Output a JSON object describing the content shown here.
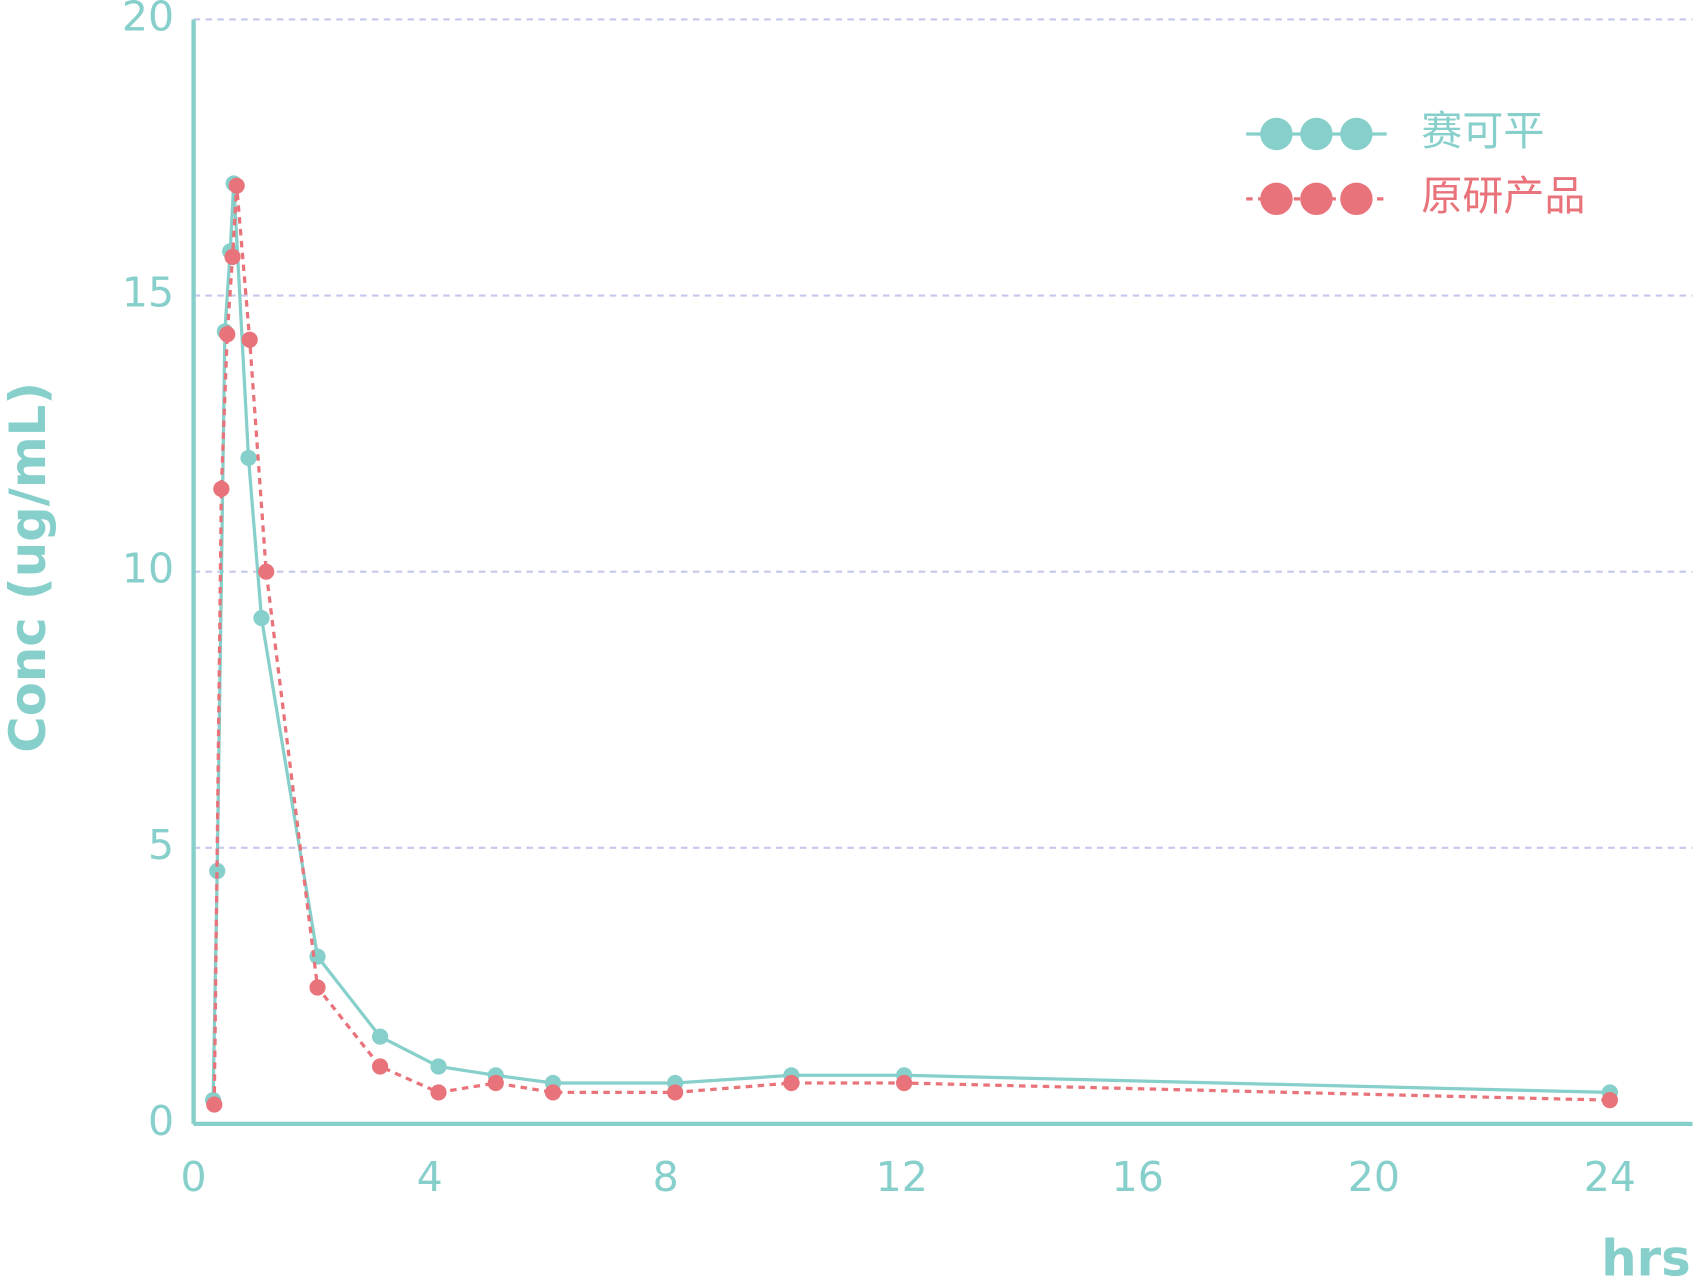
{
  "chart_data": {
    "type": "line",
    "x_label": "hrs",
    "y_label": "Conc (ug/mL)",
    "xlim": [
      0,
      25.4
    ],
    "ylim": [
      0,
      20
    ],
    "xticks": [
      0,
      4,
      8,
      12,
      16,
      20,
      24
    ],
    "yticks": [
      0,
      5,
      10,
      15,
      20
    ],
    "grid": true,
    "legend": "upper right",
    "series": [
      {
        "name": "赛可平",
        "color": "#86cfca",
        "dash": false,
        "x": [
          0.33,
          0.4,
          0.53,
          0.62,
          0.68,
          0.93,
          1.15,
          2.1,
          3.16,
          4.15,
          5.12,
          6.09,
          8.16,
          10.13,
          12.04,
          24
        ],
        "values": [
          0.43,
          4.58,
          14.35,
          15.8,
          17.03,
          12.06,
          9.16,
          3.03,
          1.58,
          1.04,
          0.88,
          0.74,
          0.74,
          0.88,
          0.88,
          0.57
        ]
      },
      {
        "name": "原研产品",
        "color": "#e8737a",
        "dash": true,
        "x": [
          0.35,
          0.47,
          0.57,
          0.66,
          0.73,
          0.95,
          1.23,
          2.1,
          3.16,
          4.15,
          5.12,
          6.09,
          8.16,
          10.13,
          12.04,
          24
        ],
        "values": [
          0.35,
          11.5,
          14.3,
          15.7,
          16.99,
          14.2,
          10.0,
          2.47,
          1.04,
          0.57,
          0.74,
          0.57,
          0.57,
          0.74,
          0.74,
          0.43
        ]
      }
    ]
  }
}
